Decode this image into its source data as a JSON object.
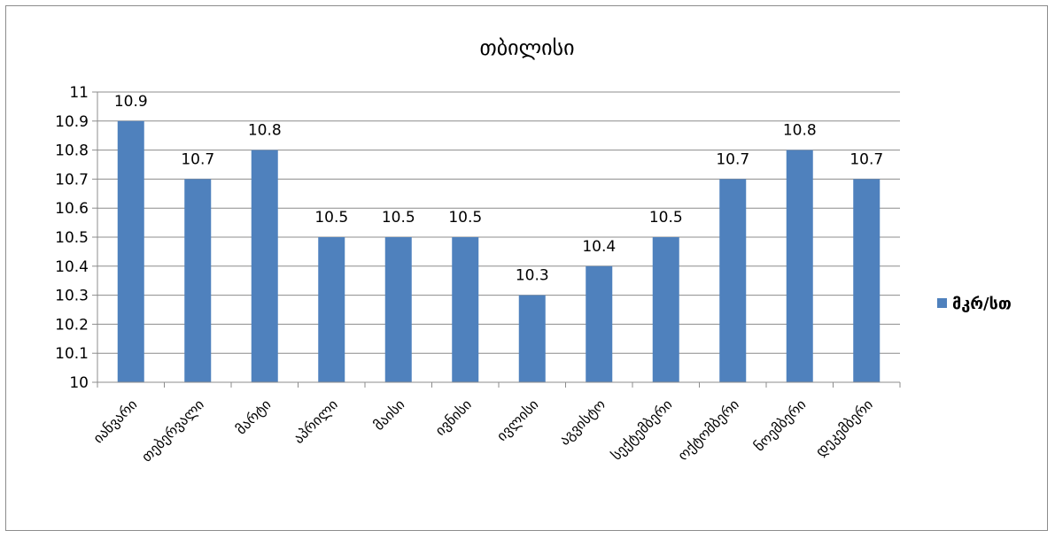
{
  "chart_data": {
    "type": "bar",
    "title": "თბილისი",
    "categories": [
      "იანვარი",
      "თებერვალი",
      "მარტი",
      "აპრილი",
      "მაისი",
      "ივნისი",
      "ივლისი",
      "აგვისტო",
      "სექტემბერი",
      "ოქტომბერი",
      "ნოემბერი",
      "დეკემბერი"
    ],
    "series": [
      {
        "name": "მკრ/სთ",
        "values": [
          10.9,
          10.7,
          10.8,
          10.5,
          10.5,
          10.5,
          10.3,
          10.4,
          10.5,
          10.7,
          10.8,
          10.7
        ]
      }
    ],
    "ylim": [
      10,
      11
    ],
    "yticks": [
      "10",
      "10.1",
      "10.2",
      "10.3",
      "10.4",
      "10.5",
      "10.6",
      "10.7",
      "10.8",
      "10.9",
      "11"
    ],
    "grid": true,
    "legend_position": "right",
    "colors": {
      "bar": "#4f81bd",
      "grid": "#8c8c8c",
      "axis": "#8c8c8c"
    }
  }
}
